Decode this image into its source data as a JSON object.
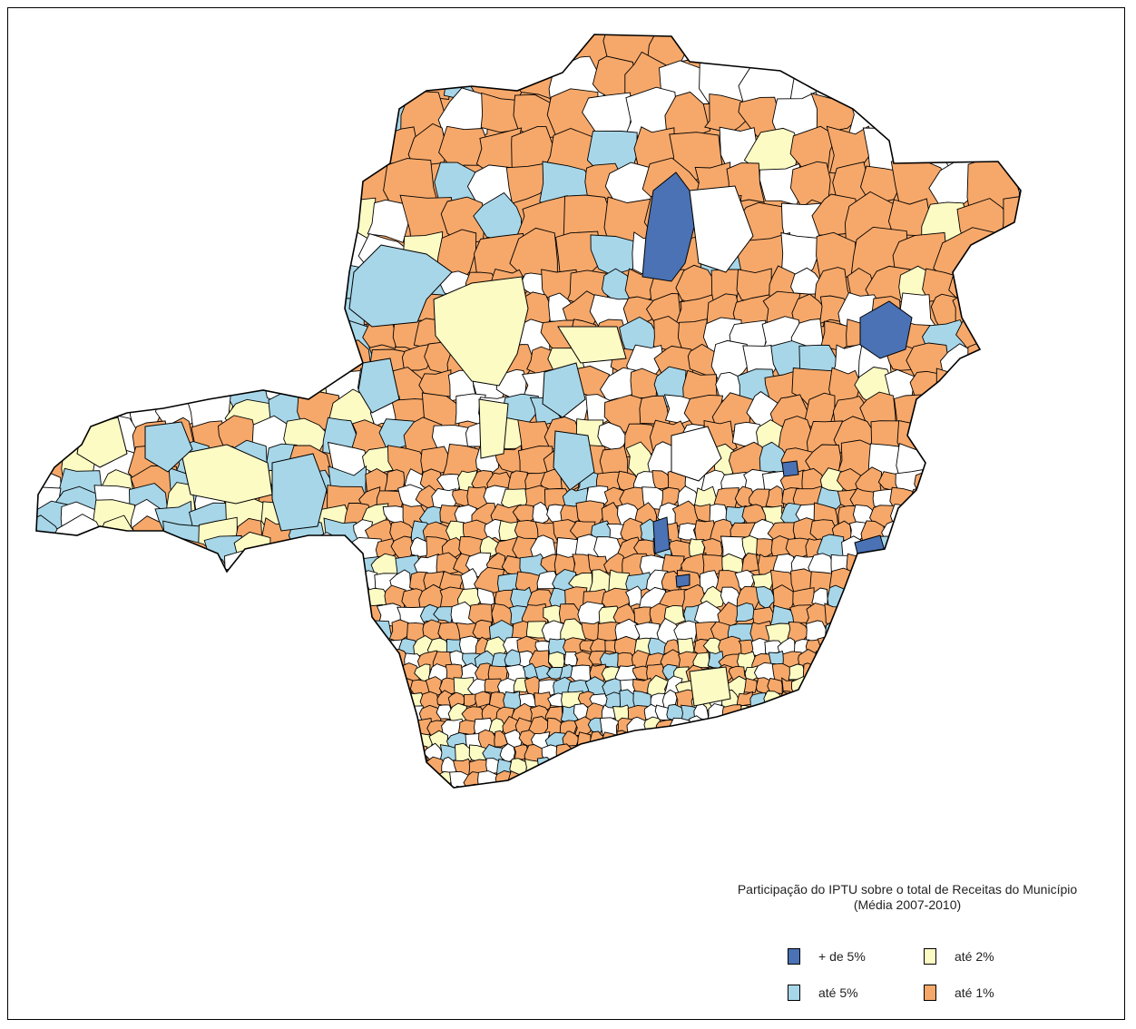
{
  "legend": {
    "title_line1": "Participação do IPTU sobre o total de Receitas do Município",
    "title_line2": "(Média 2007-2010)",
    "items": [
      {
        "label": "+ de 5%",
        "color": "#4a72b4"
      },
      {
        "label": "até 2%",
        "color": "#fdfbc4"
      },
      {
        "label": "até 5%",
        "color": "#a7d6e8"
      },
      {
        "label": "até 1%",
        "color": "#f6a86a"
      }
    ]
  },
  "colors": {
    "none": "#ffffff",
    "border": "#000000"
  }
}
